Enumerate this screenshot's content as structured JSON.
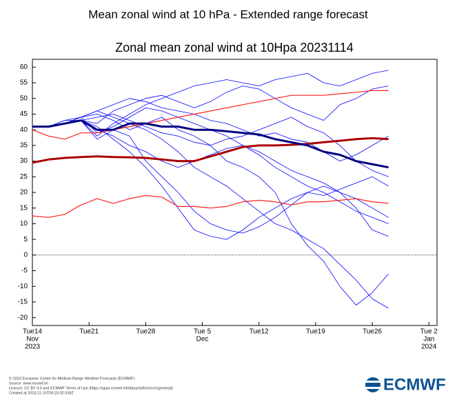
{
  "header": {
    "title": "Mean zonal wind at 10 hPa - Extended range forecast"
  },
  "chart_data": {
    "type": "line",
    "title": "Zonal mean zonal wind at 10Hpa 20231114",
    "x": [
      "2023-11-14",
      "2023-11-16",
      "2023-11-18",
      "2023-11-20",
      "2023-11-22",
      "2023-11-24",
      "2023-11-26",
      "2023-11-28",
      "2023-11-30",
      "2023-12-02",
      "2023-12-04",
      "2023-12-06",
      "2023-12-08",
      "2023-12-10",
      "2023-12-12",
      "2023-12-14",
      "2023-12-16",
      "2023-12-18",
      "2023-12-20",
      "2023-12-22",
      "2023-12-24",
      "2023-12-26",
      "2023-12-28"
    ],
    "series": [
      {
        "color": "#0000ff",
        "width": 0.8,
        "values": [
          41,
          41,
          43,
          44,
          46,
          44,
          42,
          40,
          37,
          33,
          28,
          25,
          22,
          18,
          14,
          10,
          8,
          5,
          2,
          -3,
          -8,
          -14,
          -17
        ]
      },
      {
        "color": "#0000ff",
        "width": 0.8,
        "values": [
          41,
          41,
          42,
          43,
          38,
          42,
          45,
          48,
          50,
          52,
          54,
          55,
          56,
          55,
          54,
          56,
          57,
          58,
          55,
          54,
          56,
          58,
          59
        ]
      },
      {
        "color": "#0000ff",
        "width": 0.8,
        "values": [
          41,
          41,
          42,
          43,
          37,
          40,
          38,
          30,
          25,
          20,
          14,
          10,
          8,
          7,
          9,
          12,
          16,
          20,
          22,
          20,
          18,
          15,
          12
        ]
      },
      {
        "color": "#0000ff",
        "width": 0.8,
        "values": [
          41,
          41,
          42,
          44,
          45,
          43,
          40,
          42,
          44,
          40,
          38,
          35,
          30,
          28,
          25,
          20,
          10,
          3,
          -2,
          -10,
          -16,
          -12,
          -6
        ]
      },
      {
        "color": "#0000ff",
        "width": 0.8,
        "values": [
          41,
          41,
          43,
          43,
          42,
          46,
          48,
          50,
          51,
          49,
          47,
          49,
          52,
          54,
          53,
          50,
          47,
          45,
          43,
          48,
          50,
          53,
          54
        ]
      },
      {
        "color": "#0000ff",
        "width": 0.8,
        "values": [
          41,
          41,
          42,
          43,
          40,
          38,
          35,
          33,
          30,
          28,
          30,
          32,
          34,
          35,
          33,
          30,
          27,
          25,
          23,
          20,
          15,
          8,
          6
        ]
      },
      {
        "color": "#0000ff",
        "width": 0.8,
        "values": [
          41,
          41,
          42,
          43,
          44,
          45,
          43,
          41,
          39,
          38,
          36,
          35,
          37,
          38,
          40,
          42,
          44,
          41,
          39,
          35,
          30,
          27,
          25
        ]
      },
      {
        "color": "#0000ff",
        "width": 0.8,
        "values": [
          41,
          41,
          42,
          44,
          39,
          41,
          44,
          47,
          46,
          44,
          42,
          40,
          38,
          35,
          32,
          28,
          25,
          22,
          20,
          17,
          14,
          12,
          10
        ]
      },
      {
        "color": "#0000ff",
        "width": 0.8,
        "values": [
          41,
          41,
          42,
          43,
          41,
          37,
          33,
          28,
          22,
          15,
          8,
          6,
          5,
          8,
          12,
          15,
          18,
          20,
          19,
          21,
          23,
          25,
          22
        ]
      },
      {
        "color": "#0000ff",
        "width": 0.8,
        "values": [
          41,
          41,
          42,
          44,
          46,
          48,
          50,
          49,
          47,
          46,
          45,
          43,
          42,
          40,
          38,
          39,
          37,
          36,
          33,
          30,
          32,
          35,
          38
        ]
      },
      {
        "color": "#ff2020",
        "width": 1.2,
        "values": [
          40,
          38,
          37,
          39,
          39,
          40,
          41,
          42,
          43,
          44,
          45,
          46,
          47,
          48,
          49,
          50,
          51,
          51,
          51,
          51.5,
          52,
          52.5,
          52.5
        ]
      },
      {
        "color": "#ff2020",
        "width": 1.2,
        "values": [
          12.5,
          12,
          13,
          16,
          18,
          16.5,
          18,
          19,
          18.5,
          15.5,
          15.5,
          15,
          15.5,
          17,
          17.5,
          17,
          16,
          17,
          17,
          17.5,
          18,
          17,
          16.5
        ]
      },
      {
        "color": "#aa0000",
        "width": 3,
        "values": [
          29.5,
          30.5,
          31,
          31.3,
          31.5,
          31.3,
          31.2,
          31,
          30.5,
          30,
          30,
          31.5,
          33,
          34.5,
          35,
          35,
          35.2,
          35.5,
          36,
          36.5,
          37,
          37.3,
          37
        ]
      },
      {
        "color": "#000080",
        "width": 3,
        "values": [
          41,
          41,
          42,
          43,
          40,
          40,
          42,
          42,
          41,
          41,
          40,
          40,
          39.5,
          39,
          38.5,
          37,
          36,
          35,
          33,
          32,
          30,
          29,
          28
        ]
      }
    ],
    "ylim": [
      -22.5,
      62.5
    ],
    "yticks": [
      -20,
      -15,
      -10,
      -5,
      0,
      5,
      10,
      15,
      20,
      25,
      30,
      35,
      40,
      45,
      50,
      55,
      60
    ],
    "xlim": [
      "2023-11-14",
      "2024-01-03"
    ],
    "xticks": [
      {
        "value": "2023-11-14",
        "label": "Tue14"
      },
      {
        "value": "2023-11-21",
        "label": "Tue21"
      },
      {
        "value": "2023-11-28",
        "label": "Tue28"
      },
      {
        "value": "2023-12-05",
        "label": "Tue 5"
      },
      {
        "value": "2023-12-12",
        "label": "Tue12"
      },
      {
        "value": "2023-12-19",
        "label": "Tue19"
      },
      {
        "value": "2023-12-26",
        "label": "Tue26"
      },
      {
        "value": "2024-01-02",
        "label": "Tue 2"
      }
    ],
    "x_sublabels": [
      {
        "value": "2023-11-14",
        "lines": [
          "Nov",
          "2023"
        ]
      },
      {
        "value": "2023-12-05",
        "lines": [
          "Dec"
        ]
      },
      {
        "value": "2024-01-02",
        "lines": [
          "Jan",
          "2024"
        ]
      }
    ],
    "hline": 0
  },
  "footer": {
    "lines": [
      "© 2023 European Centre for Medium-Range Weather Forecasts (ECMWF)",
      "Source: www.ecmwf.int",
      "Licence: CC BY 4.0 and ECMWF Terms of Use (https://apps.ecmwf.int/datasets/licences/general/)",
      "Created at 2023-11-15T09:23:32.539Z"
    ],
    "logo": "ECMWF"
  }
}
